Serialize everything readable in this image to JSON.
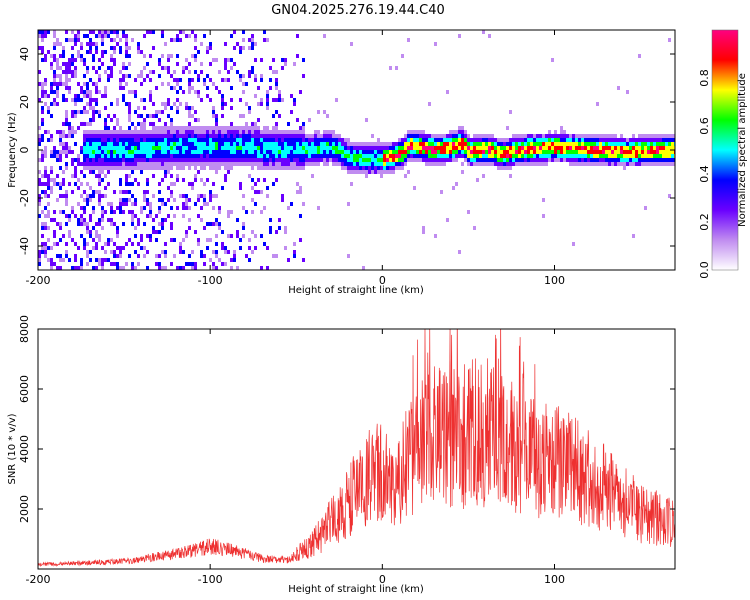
{
  "title": "GN04.2025.276.19.44.C40",
  "chart_data": [
    {
      "type": "heatmap",
      "name": "spectrogram",
      "xlabel": "Height of straight line (km)",
      "ylabel": "Frequency (Hz)",
      "xlim": [
        -200,
        170
      ],
      "ylim": [
        -50,
        50
      ],
      "xticks": [
        -200,
        -100,
        0,
        100
      ],
      "yticks": [
        -40,
        -20,
        0,
        20,
        40
      ],
      "colorbar": {
        "label": "Normalized spectral amplitude",
        "range": [
          0,
          1
        ],
        "ticks": [
          "0.0",
          "0.2",
          "0.4",
          "0.6",
          "0.8"
        ],
        "colors": [
          "#ffffff",
          "#c08cf0",
          "#6a00ff",
          "#0000ff",
          "#00ffff",
          "#00ff00",
          "#ffff00",
          "#ff0000",
          "#ff0080"
        ]
      },
      "ridge": {
        "height_km": [
          -170,
          -150,
          -120,
          -100,
          -80,
          -60,
          -45,
          -30,
          -20,
          -10,
          0,
          10,
          15,
          20,
          30,
          40,
          45,
          50,
          60,
          70,
          80,
          100,
          120,
          140,
          170
        ],
        "frequency_hz": [
          1,
          1,
          2,
          2,
          2,
          1,
          1,
          2,
          -2,
          -3,
          -3,
          -1,
          3,
          2,
          1,
          2,
          4,
          0,
          1,
          -1,
          1,
          2,
          1,
          0,
          1
        ]
      }
    },
    {
      "type": "line",
      "name": "snr",
      "xlabel": "Height of straight line (km)",
      "ylabel": "SNR (10 * v/v)",
      "xlim": [
        -200,
        170
      ],
      "ylim": [
        0,
        8000
      ],
      "xticks": [
        -200,
        -100,
        0,
        100
      ],
      "yticks": [
        2000,
        4000,
        6000,
        8000
      ],
      "color": "#ee3030",
      "envelope": {
        "height_km": [
          -200,
          -150,
          -120,
          -100,
          -85,
          -70,
          -55,
          -45,
          -35,
          -25,
          -15,
          -5,
          5,
          15,
          25,
          35,
          45,
          55,
          65,
          75,
          90,
          105,
          115,
          130,
          150,
          170
        ],
        "snr": [
          150,
          250,
          500,
          750,
          600,
          350,
          300,
          650,
          1200,
          1800,
          2600,
          3200,
          3000,
          3600,
          4200,
          4600,
          4400,
          4600,
          4500,
          4100,
          3600,
          3500,
          3200,
          2700,
          1900,
          1500
        ]
      }
    }
  ]
}
